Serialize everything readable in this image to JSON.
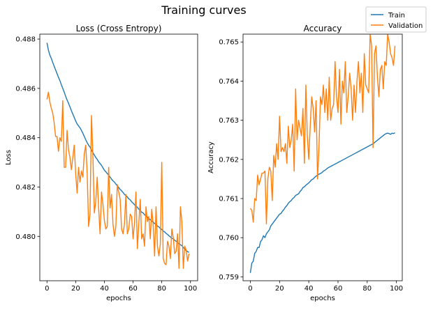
{
  "figure": {
    "suptitle": "Training curves",
    "legend": [
      {
        "label": "Train",
        "color": "#1f77b4"
      },
      {
        "label": "Validation",
        "color": "#ff7f0e"
      }
    ]
  },
  "chart_data": [
    {
      "type": "line",
      "title": "Loss (Cross Entropy)",
      "xlabel": "epochs",
      "ylabel": "Loss",
      "xlim": [
        -5,
        105
      ],
      "ylim": [
        0.4782,
        0.4882
      ],
      "xticks": [
        0,
        20,
        40,
        60,
        80,
        100
      ],
      "yticks": [
        0.48,
        0.482,
        0.484,
        0.486,
        0.488
      ],
      "ytick_decimals": 3,
      "grid": false,
      "x": [
        0,
        1,
        2,
        3,
        4,
        5,
        6,
        7,
        8,
        9,
        10,
        11,
        12,
        13,
        14,
        15,
        16,
        17,
        18,
        19,
        20,
        21,
        22,
        23,
        24,
        25,
        26,
        27,
        28,
        29,
        30,
        31,
        32,
        33,
        34,
        35,
        36,
        37,
        38,
        39,
        40,
        41,
        42,
        43,
        44,
        45,
        46,
        47,
        48,
        49,
        50,
        51,
        52,
        53,
        54,
        55,
        56,
        57,
        58,
        59,
        60,
        61,
        62,
        63,
        64,
        65,
        66,
        67,
        68,
        69,
        70,
        71,
        72,
        73,
        74,
        75,
        76,
        77,
        78,
        79,
        80,
        81,
        82,
        83,
        84,
        85,
        86,
        87,
        88,
        89,
        90,
        91,
        92,
        93,
        94,
        95,
        96,
        97,
        98,
        99
      ],
      "series": [
        {
          "name": "Train",
          "color": "#1f77b4",
          "values": [
            0.48785,
            0.48755,
            0.48735,
            0.48722,
            0.48705,
            0.4869,
            0.48675,
            0.4866,
            0.48645,
            0.48632,
            0.48615,
            0.486,
            0.48585,
            0.48568,
            0.48553,
            0.4854,
            0.48525,
            0.4851,
            0.48496,
            0.48482,
            0.48468,
            0.48456,
            0.48448,
            0.4844,
            0.4843,
            0.48418,
            0.48405,
            0.48392,
            0.4838,
            0.4837,
            0.48362,
            0.4835,
            0.4834,
            0.4833,
            0.4832,
            0.48312,
            0.48302,
            0.48295,
            0.48288,
            0.48278,
            0.48268,
            0.48262,
            0.48255,
            0.48248,
            0.4824,
            0.48232,
            0.48225,
            0.4822,
            0.48212,
            0.48205,
            0.48198,
            0.4819,
            0.48185,
            0.48178,
            0.4817,
            0.48165,
            0.4816,
            0.48152,
            0.48148,
            0.4814,
            0.48135,
            0.48128,
            0.48122,
            0.48118,
            0.4811,
            0.48105,
            0.48098,
            0.48095,
            0.48088,
            0.48082,
            0.48078,
            0.48072,
            0.48068,
            0.48062,
            0.48058,
            0.48052,
            0.48048,
            0.48042,
            0.48038,
            0.48032,
            0.48028,
            0.48022,
            0.48018,
            0.48012,
            0.48008,
            0.48002,
            0.47998,
            0.47992,
            0.4799,
            0.47984,
            0.4798,
            0.47975,
            0.4797,
            0.47966,
            0.47962,
            0.47955,
            0.47948,
            0.47942,
            0.47938,
            0.47935
          ]
        },
        {
          "name": "Validation",
          "color": "#ff7f0e",
          "values": [
            0.48555,
            0.48585,
            0.48545,
            0.4852,
            0.485,
            0.4846,
            0.48405,
            0.48405,
            0.48345,
            0.484,
            0.48385,
            0.4855,
            0.4828,
            0.4828,
            0.4843,
            0.4835,
            0.4832,
            0.4827,
            0.4832,
            0.4837,
            0.48255,
            0.48175,
            0.4828,
            0.4822,
            0.48265,
            0.4824,
            0.48335,
            0.4837,
            0.4826,
            0.4804,
            0.4809,
            0.4849,
            0.4833,
            0.48095,
            0.4814,
            0.4824,
            0.48115,
            0.4801,
            0.4818,
            0.4813,
            0.48065,
            0.4803,
            0.4804,
            0.4828,
            0.48115,
            0.4817,
            0.4805,
            0.48,
            0.4804,
            0.4821,
            0.4818,
            0.4815,
            0.4803,
            0.4801,
            0.4805,
            0.4817,
            0.4801,
            0.4803,
            0.4809,
            0.4808,
            0.4799,
            0.48055,
            0.4818,
            0.4795,
            0.4805,
            0.4815,
            0.4799,
            0.4801,
            0.4796,
            0.4812,
            0.4806,
            0.4808,
            0.4799,
            0.4811,
            0.4805,
            0.4792,
            0.4812,
            0.4796,
            0.4792,
            0.4797,
            0.483,
            0.4791,
            0.4789,
            0.47885,
            0.4798,
            0.4796,
            0.4791,
            0.4803,
            0.47995,
            0.4793,
            0.4794,
            0.4801,
            0.4787,
            0.4812,
            0.4806,
            0.4787,
            0.4796,
            0.47945,
            0.479,
            0.4793
          ]
        }
      ]
    },
    {
      "type": "line",
      "title": "Accuracy",
      "xlabel": "epochs",
      "ylabel": "Accuracy",
      "xlim": [
        -5,
        104
      ],
      "ylim": [
        0.7589,
        0.7652
      ],
      "xticks": [
        0,
        20,
        40,
        60,
        80,
        100
      ],
      "yticks": [
        0.759,
        0.76,
        0.761,
        0.762,
        0.763,
        0.764,
        0.765
      ],
      "ytick_decimals": 3,
      "grid": false,
      "x": [
        0,
        1,
        2,
        3,
        4,
        5,
        6,
        7,
        8,
        9,
        10,
        11,
        12,
        13,
        14,
        15,
        16,
        17,
        18,
        19,
        20,
        21,
        22,
        23,
        24,
        25,
        26,
        27,
        28,
        29,
        30,
        31,
        32,
        33,
        34,
        35,
        36,
        37,
        38,
        39,
        40,
        41,
        42,
        43,
        44,
        45,
        46,
        47,
        48,
        49,
        50,
        51,
        52,
        53,
        54,
        55,
        56,
        57,
        58,
        59,
        60,
        61,
        62,
        63,
        64,
        65,
        66,
        67,
        68,
        69,
        70,
        71,
        72,
        73,
        74,
        75,
        76,
        77,
        78,
        79,
        80,
        81,
        82,
        83,
        84,
        85,
        86,
        87,
        88,
        89,
        90,
        91,
        92,
        93,
        94,
        95,
        96,
        97,
        98,
        99
      ],
      "series": [
        {
          "name": "Train",
          "color": "#1f77b4",
          "values": [
            0.7591,
            0.75935,
            0.7594,
            0.7596,
            0.75965,
            0.75975,
            0.75975,
            0.7599,
            0.75995,
            0.76005,
            0.76,
            0.7601,
            0.76015,
            0.7602,
            0.7603,
            0.76035,
            0.7604,
            0.76045,
            0.7605,
            0.76055,
            0.7606,
            0.76062,
            0.76068,
            0.76072,
            0.76078,
            0.76082,
            0.76088,
            0.76092,
            0.76095,
            0.761,
            0.76103,
            0.76108,
            0.7611,
            0.76112,
            0.76118,
            0.76122,
            0.76128,
            0.7613,
            0.76134,
            0.76137,
            0.7614,
            0.76144,
            0.76148,
            0.7615,
            0.76154,
            0.76157,
            0.7616,
            0.76162,
            0.76164,
            0.76166,
            0.7617,
            0.76172,
            0.76175,
            0.76178,
            0.7618,
            0.76182,
            0.76184,
            0.76186,
            0.76188,
            0.7619,
            0.76192,
            0.76194,
            0.76196,
            0.76198,
            0.762,
            0.76202,
            0.76204,
            0.76206,
            0.76208,
            0.7621,
            0.76212,
            0.76214,
            0.76216,
            0.76218,
            0.7622,
            0.76222,
            0.76224,
            0.76226,
            0.76228,
            0.7623,
            0.76232,
            0.76234,
            0.76236,
            0.76238,
            0.7624,
            0.76243,
            0.76246,
            0.76249,
            0.76252,
            0.76255,
            0.76258,
            0.76261,
            0.76264,
            0.76266,
            0.76267,
            0.76266,
            0.76264,
            0.76267,
            0.76266,
            0.76268
          ]
        },
        {
          "name": "Validation",
          "color": "#ff7f0e",
          "values": [
            0.76075,
            0.7607,
            0.7604,
            0.761,
            0.76095,
            0.7616,
            0.76135,
            0.7615,
            0.76165,
            0.76165,
            0.7617,
            0.76035,
            0.7615,
            0.7618,
            0.7617,
            0.76095,
            0.7621,
            0.7618,
            0.7624,
            0.762,
            0.7631,
            0.7622,
            0.7623,
            0.7622,
            0.7624,
            0.7619,
            0.76285,
            0.7623,
            0.7625,
            0.7629,
            0.7617,
            0.7638,
            0.7625,
            0.763,
            0.7628,
            0.7626,
            0.7633,
            0.7619,
            0.7639,
            0.7626,
            0.762,
            0.76285,
            0.7636,
            0.7633,
            0.7627,
            0.7635,
            0.7615,
            0.7623,
            0.7636,
            0.7634,
            0.7639,
            0.7632,
            0.7638,
            0.763,
            0.7641,
            0.763,
            0.7633,
            0.7634,
            0.7645,
            0.7636,
            0.7632,
            0.7643,
            0.7629,
            0.764,
            0.7637,
            0.7645,
            0.7632,
            0.7636,
            0.7642,
            0.7638,
            0.763,
            0.7639,
            0.7632,
            0.764,
            0.7645,
            0.7637,
            0.7642,
            0.7632,
            0.7647,
            0.7639,
            0.7638,
            0.7637,
            0.7652,
            0.7649,
            0.7623,
            0.7647,
            0.7649,
            0.7641,
            0.7636,
            0.7643,
            0.7644,
            0.7638,
            0.7645,
            0.7644,
            0.7652,
            0.765,
            0.7647,
            0.7646,
            0.7644,
            0.7649
          ]
        }
      ]
    }
  ]
}
